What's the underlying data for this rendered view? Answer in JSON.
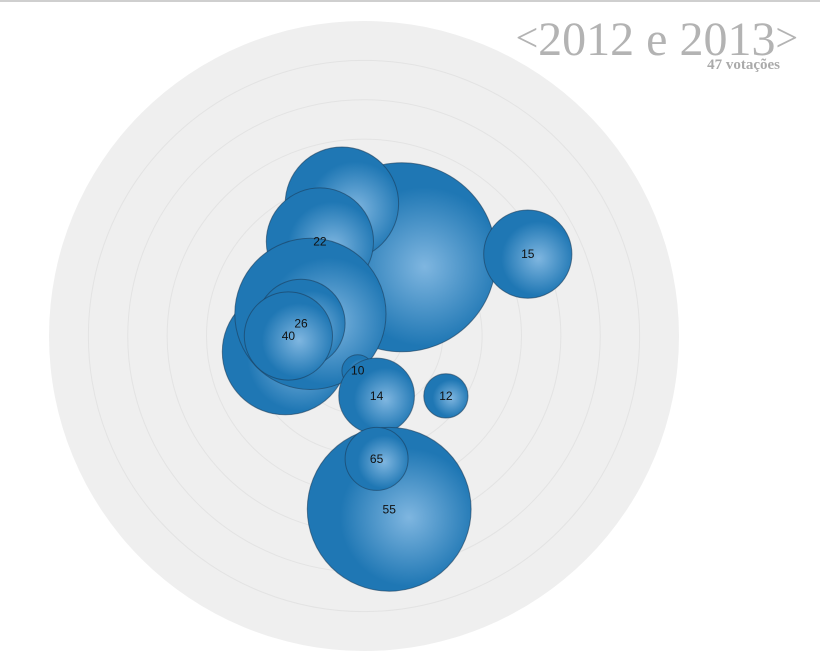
{
  "header": {
    "prev_label": "<",
    "year_a": "2012",
    "joiner": "e",
    "year_b": "2013",
    "next_label": ">",
    "vote_count": "47 votações"
  },
  "chart_data": {
    "type": "bubble",
    "colors": {
      "bubble": "#1f77b4",
      "bubble_highlight": "#7fb6e0",
      "stroke": "#1a3e5c",
      "background_disc": "#efefef",
      "rings": "#e3e3e3"
    },
    "grid": true,
    "rings": 7,
    "points": [
      {
        "id": "b-big",
        "label": "",
        "x": 0.12,
        "y": 0.25,
        "r": 0.3
      },
      {
        "id": "b-top",
        "label": "",
        "x": -0.07,
        "y": 0.42,
        "r": 0.18
      },
      {
        "id": "b-22",
        "label": "22",
        "x": -0.14,
        "y": 0.3,
        "r": 0.17
      },
      {
        "id": "b-low-left",
        "label": "",
        "x": -0.25,
        "y": -0.05,
        "r": 0.2
      },
      {
        "id": "b-mid-left",
        "label": "",
        "x": -0.17,
        "y": 0.07,
        "r": 0.24
      },
      {
        "id": "b-26",
        "label": "26",
        "x": -0.2,
        "y": 0.04,
        "r": 0.14
      },
      {
        "id": "b-40",
        "label": "40",
        "x": -0.24,
        "y": 0.0,
        "r": 0.14
      },
      {
        "id": "b-10",
        "label": "10",
        "x": -0.02,
        "y": -0.11,
        "r": 0.05
      },
      {
        "id": "b-14",
        "label": "14",
        "x": 0.04,
        "y": -0.19,
        "r": 0.12
      },
      {
        "id": "b-12",
        "label": "12",
        "x": 0.26,
        "y": -0.19,
        "r": 0.07
      },
      {
        "id": "b-15",
        "label": "15",
        "x": 0.52,
        "y": 0.26,
        "r": 0.14
      },
      {
        "id": "b-55",
        "label": "55",
        "x": 0.08,
        "y": -0.55,
        "r": 0.26
      },
      {
        "id": "b-65",
        "label": "65",
        "x": 0.04,
        "y": -0.39,
        "r": 0.1
      }
    ]
  }
}
